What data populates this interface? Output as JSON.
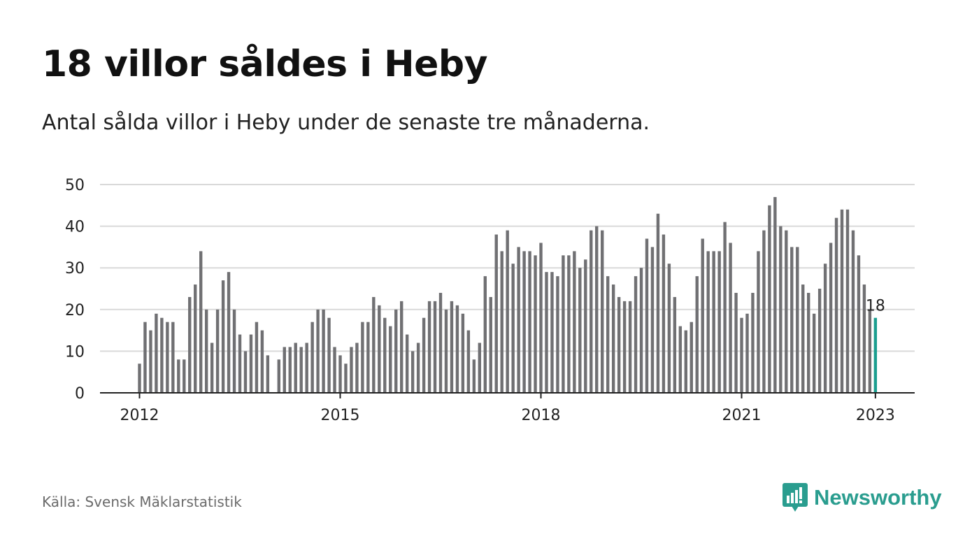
{
  "title": "18 villor såldes i Heby",
  "subtitle": "Antal sålda villor i Heby under de senaste tre månaderna.",
  "source": "Källa: Svensk Mäklarstatistik",
  "brand": {
    "name": "Newsworthy",
    "icon": "bar-chart-speech-bubble-icon",
    "color": "#2a9d8f"
  },
  "chart_data": {
    "type": "bar",
    "colors": {
      "bar": "#707073",
      "highlight": "#1a9e8f",
      "grid": "#d9d9d9",
      "axis": "#222222"
    },
    "ylim": [
      0,
      50
    ],
    "y_ticks": [
      0,
      10,
      20,
      30,
      40,
      50
    ],
    "x_ticks": [
      "2012",
      "2015",
      "2018",
      "2021",
      "2023"
    ],
    "start": "2012-01",
    "highlight_label": "18",
    "values": [
      7,
      17,
      15,
      19,
      18,
      17,
      17,
      8,
      8,
      23,
      26,
      34,
      20,
      12,
      20,
      27,
      29,
      20,
      14,
      10,
      14,
      17,
      15,
      9,
      null,
      8,
      11,
      11,
      12,
      11,
      12,
      17,
      20,
      20,
      18,
      11,
      9,
      7,
      11,
      12,
      17,
      17,
      23,
      21,
      18,
      16,
      20,
      22,
      14,
      10,
      12,
      18,
      22,
      22,
      24,
      20,
      22,
      21,
      19,
      15,
      8,
      12,
      28,
      23,
      38,
      34,
      39,
      31,
      35,
      34,
      34,
      33,
      36,
      29,
      29,
      28,
      33,
      33,
      34,
      30,
      32,
      39,
      40,
      39,
      28,
      26,
      23,
      22,
      22,
      28,
      30,
      37,
      35,
      43,
      38,
      31,
      23,
      16,
      15,
      17,
      28,
      37,
      34,
      34,
      34,
      41,
      36,
      24,
      18,
      19,
      24,
      34,
      39,
      45,
      47,
      40,
      39,
      35,
      35,
      26,
      24,
      19,
      25,
      31,
      36,
      42,
      44,
      44,
      39,
      33,
      26,
      20,
      18
    ]
  }
}
